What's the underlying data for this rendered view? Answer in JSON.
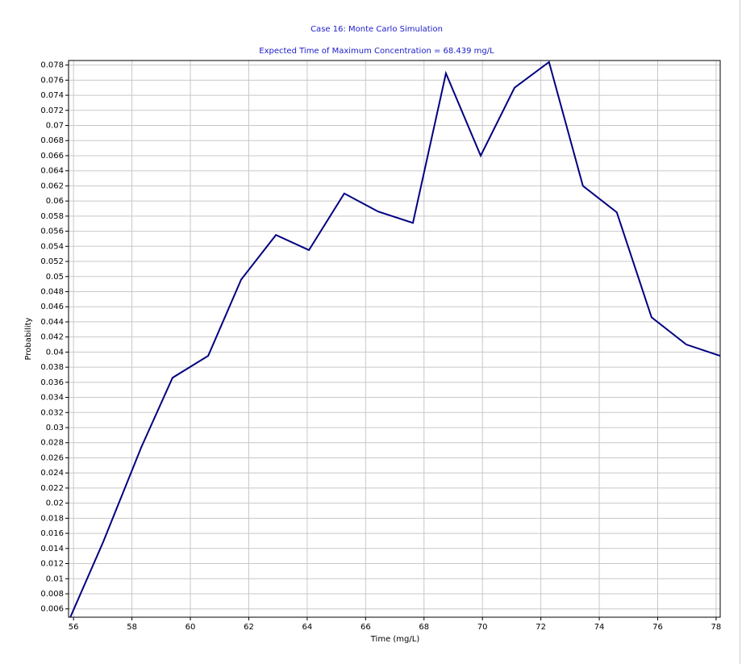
{
  "chart_data": {
    "type": "line",
    "title": "Case 16: Monte Carlo Simulation",
    "subtitle": "Expected Time of Maximum Concentration = 68.439 mg/L",
    "x_label": "Time (mg/L)",
    "y_label": "Probability",
    "x": [
      55.89,
      57.02,
      58.32,
      59.39,
      60.61,
      61.74,
      62.93,
      64.06,
      65.27,
      66.43,
      67.62,
      68.75,
      69.94,
      71.1,
      72.28,
      73.44,
      74.6,
      75.79,
      76.98,
      78.14
    ],
    "series": [
      {
        "color": "#000080",
        "values": [
          0.0049,
          0.0149,
          0.0274,
          0.0366,
          0.0395,
          0.0496,
          0.0555,
          0.0535,
          0.061,
          0.0586,
          0.0571,
          0.0769,
          0.066,
          0.075,
          0.0784,
          0.062,
          0.0585,
          0.0446,
          0.041,
          0.0395
        ]
      }
    ],
    "xlim": [
      55.83,
      78.14
    ],
    "ylim": [
      0.0049,
      0.0786
    ],
    "xticks": [
      56,
      58,
      60,
      62,
      64,
      66,
      68,
      70,
      72,
      74,
      76,
      78
    ],
    "yticks": [
      0.006,
      0.008,
      0.01,
      0.012,
      0.014,
      0.016,
      0.018,
      0.02,
      0.022,
      0.024,
      0.026,
      0.028,
      0.03,
      0.032,
      0.034,
      0.036,
      0.038,
      0.04,
      0.042,
      0.044,
      0.046,
      0.048,
      0.05,
      0.052,
      0.054,
      0.056,
      0.058,
      0.06,
      0.062,
      0.064,
      0.066,
      0.068,
      0.07,
      0.072,
      0.074,
      0.076,
      0.078
    ],
    "grid": true
  }
}
